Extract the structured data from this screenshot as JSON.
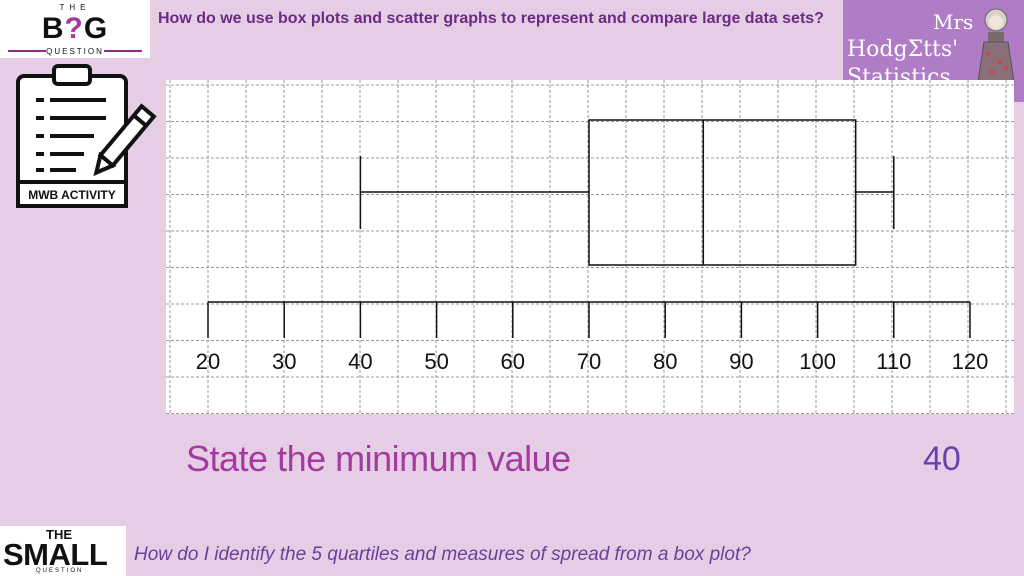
{
  "header": {
    "logo_top": "THE",
    "logo_main_left": "B",
    "logo_main_q": "?",
    "logo_main_right": "G",
    "logo_bottom": "QUESTION",
    "title": "How do we use box plots and scatter graphs to represent and compare large data sets?"
  },
  "brand": {
    "line1": "Mrs",
    "line2": "HodgΣtts'",
    "line3": "Statistics"
  },
  "activity": {
    "label": "MWB ACTIVITY"
  },
  "chart_data": {
    "type": "box",
    "x_ticks": [
      20,
      30,
      40,
      50,
      60,
      70,
      80,
      90,
      100,
      110,
      120
    ],
    "xlim": [
      20,
      120
    ],
    "grid": true,
    "box": {
      "min": 40,
      "q1": 70,
      "median": 85,
      "q3": 105,
      "max": 110
    }
  },
  "question": {
    "text": "State the minimum value",
    "answer": "40"
  },
  "footer": {
    "logo_top": "THE",
    "logo_main": "SMALL",
    "logo_bottom": "QUESTION",
    "question": "How do I identify the 5 quartiles and measures of spread  from a box plot?"
  },
  "colors": {
    "background": "#e6cde6",
    "accent": "#a33aa0",
    "title": "#6b2a86",
    "brand": "#b07cc6"
  }
}
